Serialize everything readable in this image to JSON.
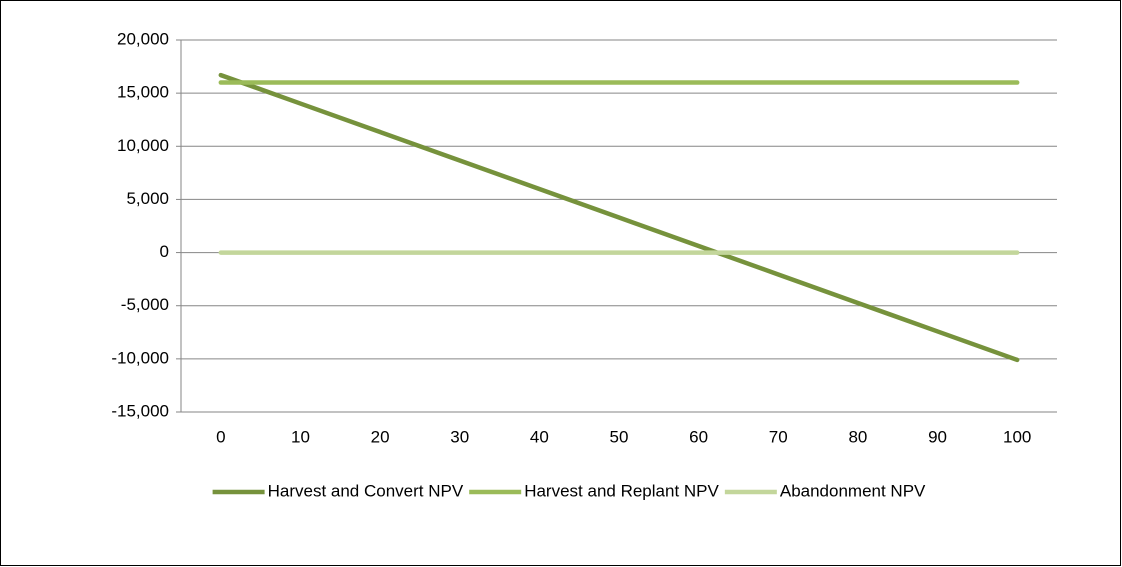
{
  "chart_data": {
    "type": "line",
    "x": [
      0,
      10,
      20,
      30,
      40,
      50,
      60,
      70,
      80,
      90,
      100
    ],
    "series": [
      {
        "name": "Harvest and Convert NPV",
        "color": "#76923c",
        "values": [
          16700,
          14020,
          11340,
          8660,
          5980,
          3300,
          620,
          -2060,
          -4740,
          -7420,
          -10100
        ]
      },
      {
        "name": "Harvest and Replant NPV",
        "color": "#9bbb59",
        "values": [
          16000,
          16000,
          16000,
          16000,
          16000,
          16000,
          16000,
          16000,
          16000,
          16000,
          16000
        ]
      },
      {
        "name": "Abandonment NPV",
        "color": "#c3d69b",
        "values": [
          0,
          0,
          0,
          0,
          0,
          0,
          0,
          0,
          0,
          0,
          0
        ]
      }
    ],
    "xlim": [
      -5,
      105
    ],
    "xticks": [
      0,
      10,
      20,
      30,
      40,
      50,
      60,
      70,
      80,
      90,
      100
    ],
    "ylim": [
      -15000,
      20000
    ],
    "yticks": [
      {
        "value": -15000,
        "label": "-15,000"
      },
      {
        "value": -10000,
        "label": "-10,000"
      },
      {
        "value": -5000,
        "label": "-5,000"
      },
      0,
      {
        "value": 5000,
        "label": "5,000"
      },
      {
        "value": 10000,
        "label": "10,000"
      },
      {
        "value": 15000,
        "label": "15,000"
      },
      {
        "value": 20000,
        "label": "20,000"
      }
    ],
    "grid": true,
    "legend": "bottom"
  }
}
